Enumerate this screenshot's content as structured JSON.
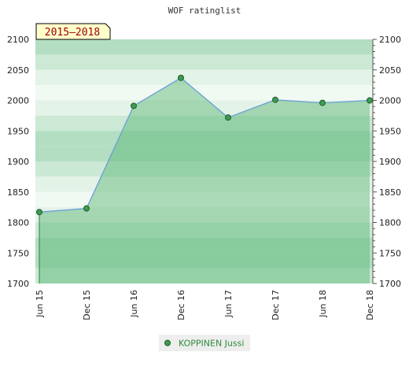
{
  "chart_data": {
    "type": "area",
    "title": "WOF ratinglist",
    "period_badge": "2015–2018",
    "categories": [
      "Jun 15",
      "Dec 15",
      "Jun 16",
      "Dec 16",
      "Jun 17",
      "Dec 17",
      "Jun 18",
      "Dec 18"
    ],
    "series": [
      {
        "name": "KOPPINEN Jussi",
        "values": [
          1817,
          1823,
          1991,
          2037,
          1972,
          2001,
          1996,
          2000
        ]
      }
    ],
    "ylim": [
      1700,
      2100
    ],
    "yticks": [
      1700,
      1750,
      1800,
      1850,
      1900,
      1950,
      2000,
      2050,
      2100
    ],
    "grid": true,
    "legend_position": "bottom-center",
    "colors": {
      "band_dark": "#b3dec1",
      "band_mid": "#cbe9d4",
      "band_light": "#e4f3e8",
      "band_lightest": "#f1f9f3",
      "area_fill": "#55b36f",
      "line": "#6a9fd8",
      "marker": "#3f9a52",
      "badge_fill": "#ffffcc",
      "badge_text": "#a00000",
      "legend_text": "#2e8b3a"
    }
  }
}
